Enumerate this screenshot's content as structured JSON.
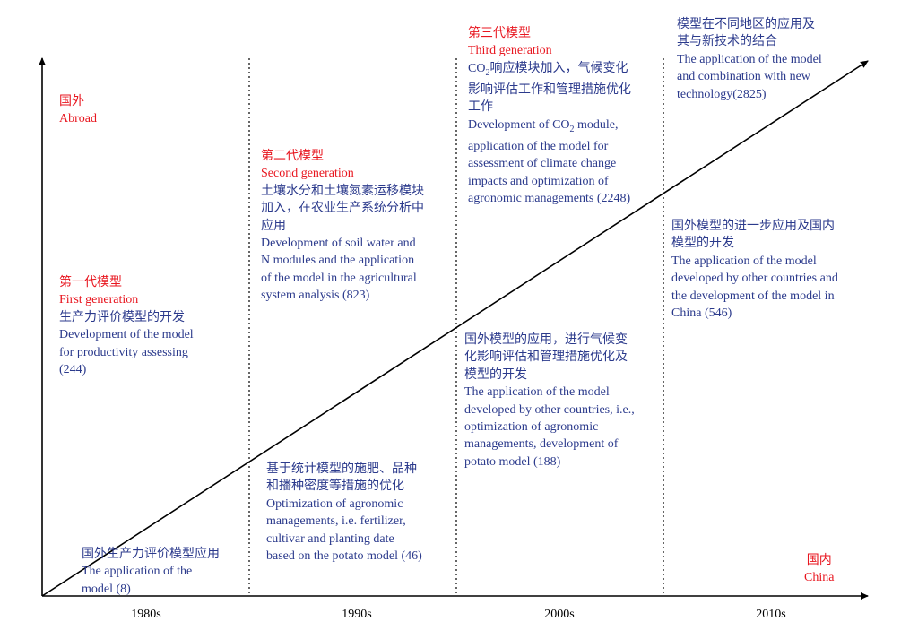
{
  "axis": {
    "ticks": [
      "1980s",
      "1990s",
      "2000s",
      "2010s"
    ],
    "top_label": {
      "zh": "国外",
      "en": "Abroad"
    },
    "bottom_label": {
      "zh": "国内",
      "en": "China"
    }
  },
  "colors": {
    "heading": "#e8161f",
    "body": "#2b3a8c",
    "axis": "#000000"
  },
  "abroad": [
    {
      "gen_zh": "第一代模型",
      "gen_en": "First generation",
      "lines": [
        "生产力评价模型的开发",
        "Development of the model",
        "for productivity assessing",
        "(244)"
      ]
    },
    {
      "gen_zh": "第二代模型",
      "gen_en": "Second generation",
      "lines": [
        "土壤水分和土壤氮素运移模块",
        "加入，在农业生产系统分析中",
        "应用",
        "Development of soil water and",
        "N modules and the application",
        "of the model in the agricultural",
        "system analysis (823)"
      ]
    },
    {
      "gen_zh": "第三代模型",
      "gen_en": "Third generation",
      "lines_top": [
        "响应模块加入，气候变化",
        "影响评估工作和管理措施优化",
        "工作"
      ],
      "co2_prefix": "Development of CO",
      "co2_suffix": " module,",
      "lines": [
        "application of the model for",
        "assessment of climate change",
        "impacts and optimization of",
        "agronomic managements (2248)"
      ]
    },
    {
      "lines": [
        "模型在不同地区的应用及",
        "其与新技术的结合",
        "The application of the model",
        "and combination with new",
        "technology(2825)"
      ]
    }
  ],
  "china": [
    {
      "lines": [
        "国外生产力评价模型应用",
        "The application of the",
        "model (8)"
      ]
    },
    {
      "lines": [
        "基于统计模型的施肥、品种",
        "和播种密度等措施的优化",
        "Optimization of agronomic",
        "managements, i.e. fertilizer,",
        "cultivar and planting date",
        "based on the potato model (46)"
      ]
    },
    {
      "lines": [
        "国外模型的应用，进行气候变",
        "化影响评估和管理措施优化及",
        "模型的开发",
        "The application of the model",
        "developed by other countries, i.e.,",
        "optimization of agronomic",
        "managements, development of",
        "potato model (188)"
      ]
    },
    {
      "lines": [
        "国外模型的进一步应用及国内",
        "模型的开发",
        "The application of the model",
        "developed by other countries and",
        "the development of the model in",
        "China (546)"
      ]
    }
  ]
}
